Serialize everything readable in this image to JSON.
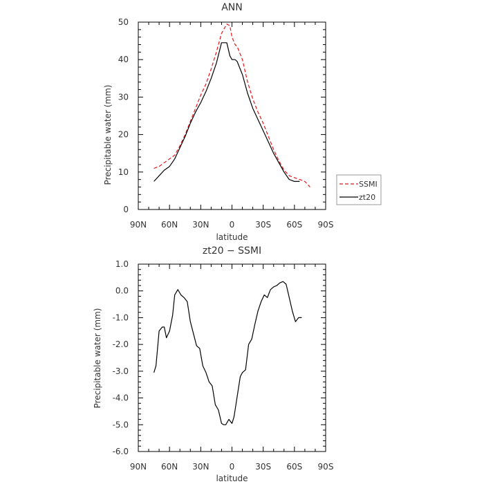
{
  "chart_data": [
    {
      "type": "line",
      "title": "ANN",
      "xlabel": "latitude",
      "ylabel": "Precipitable water (mm)",
      "xlim": [
        90,
        -90
      ],
      "ylim": [
        0,
        50
      ],
      "xticks": [
        90,
        60,
        30,
        0,
        -30,
        -60,
        -90
      ],
      "xtick_labels": [
        "90N",
        "60N",
        "30N",
        "0",
        "30S",
        "60S",
        "90S"
      ],
      "yticks": [
        0,
        10,
        20,
        30,
        40,
        50
      ],
      "ytick_labels": [
        "0",
        "10",
        "20",
        "30",
        "40",
        "50"
      ],
      "legend_position": "right",
      "series": [
        {
          "name": "SSMI",
          "color": "#e8141b",
          "dash": "dashed",
          "x": [
            75,
            70,
            65,
            60,
            55,
            50,
            45,
            40,
            35,
            30,
            25,
            20,
            15,
            10,
            5,
            2,
            0,
            -3,
            -5,
            -10,
            -15,
            -20,
            -25,
            -30,
            -35,
            -40,
            -45,
            -50,
            -55,
            -60,
            -65,
            -70,
            -75
          ],
          "y": [
            11,
            11.5,
            12.5,
            13.5,
            14.5,
            17,
            20,
            23.5,
            27,
            30.5,
            33.5,
            37.5,
            42,
            47,
            49.5,
            49,
            46,
            44,
            43.5,
            40,
            34,
            29.5,
            26,
            23,
            19.5,
            16,
            13,
            10.5,
            9,
            8.5,
            8,
            7.5,
            6
          ]
        },
        {
          "name": "zt20",
          "color": "#000000",
          "dash": "solid",
          "x": [
            75,
            70,
            65,
            60,
            55,
            50,
            45,
            40,
            35,
            30,
            25,
            20,
            15,
            10,
            5,
            2,
            0,
            -3,
            -5,
            -10,
            -15,
            -20,
            -25,
            -30,
            -35,
            -40,
            -45,
            -50,
            -55,
            -60,
            -65
          ],
          "y": [
            7.5,
            9,
            10.5,
            11.5,
            13.5,
            16.5,
            19.5,
            23,
            26,
            28.5,
            31.5,
            35,
            39,
            44.5,
            44.5,
            41,
            40,
            40,
            39.5,
            36,
            31,
            27,
            24,
            21,
            18,
            15,
            12.5,
            10,
            8,
            7.5,
            7.5
          ]
        }
      ]
    },
    {
      "type": "line",
      "title": "zt20 − SSMI",
      "xlabel": "latitude",
      "ylabel": "Precipitable water (mm)",
      "xlim": [
        90,
        -90
      ],
      "ylim": [
        -6,
        1
      ],
      "xticks": [
        90,
        60,
        30,
        0,
        -30,
        -60,
        -90
      ],
      "xtick_labels": [
        "90N",
        "60N",
        "30N",
        "0",
        "30S",
        "60S",
        "90S"
      ],
      "yticks": [
        1,
        0,
        -1,
        -2,
        -3,
        -4,
        -5,
        -6
      ],
      "ytick_labels": [
        "1.0",
        "0.0",
        "-1.0",
        "-2.0",
        "-3.0",
        "-4.0",
        "-5.0",
        "-6.0"
      ],
      "series": [
        {
          "color": "#000000",
          "dash": "solid",
          "x": [
            75,
            73,
            70,
            67,
            65,
            63,
            60,
            57,
            55,
            52,
            49,
            46,
            43,
            40,
            37,
            34,
            31,
            28,
            25,
            22,
            19,
            16,
            13,
            10,
            8,
            6,
            3,
            0,
            -2,
            -4,
            -6,
            -8,
            -10,
            -13,
            -16,
            -19,
            -22,
            -25,
            -28,
            -31,
            -34,
            -37,
            -40,
            -43,
            -46,
            -49,
            -52,
            -55,
            -58,
            -61,
            -64,
            -67
          ],
          "y": [
            -3.05,
            -2.8,
            -1.5,
            -1.35,
            -1.35,
            -1.75,
            -1.5,
            -0.9,
            -0.15,
            0.05,
            -0.15,
            -0.25,
            -0.4,
            -1.15,
            -1.6,
            -2.05,
            -2.15,
            -2.8,
            -3.05,
            -3.4,
            -3.55,
            -4.25,
            -4.45,
            -4.95,
            -5.0,
            -5.0,
            -4.8,
            -4.95,
            -4.7,
            -4.2,
            -3.7,
            -3.2,
            -3.05,
            -2.95,
            -2.0,
            -1.8,
            -1.25,
            -0.75,
            -0.4,
            -0.15,
            -0.25,
            0.05,
            0.15,
            0.2,
            0.3,
            0.35,
            0.25,
            -0.25,
            -0.75,
            -1.15,
            -1.0,
            -1.0
          ]
        }
      ]
    }
  ]
}
